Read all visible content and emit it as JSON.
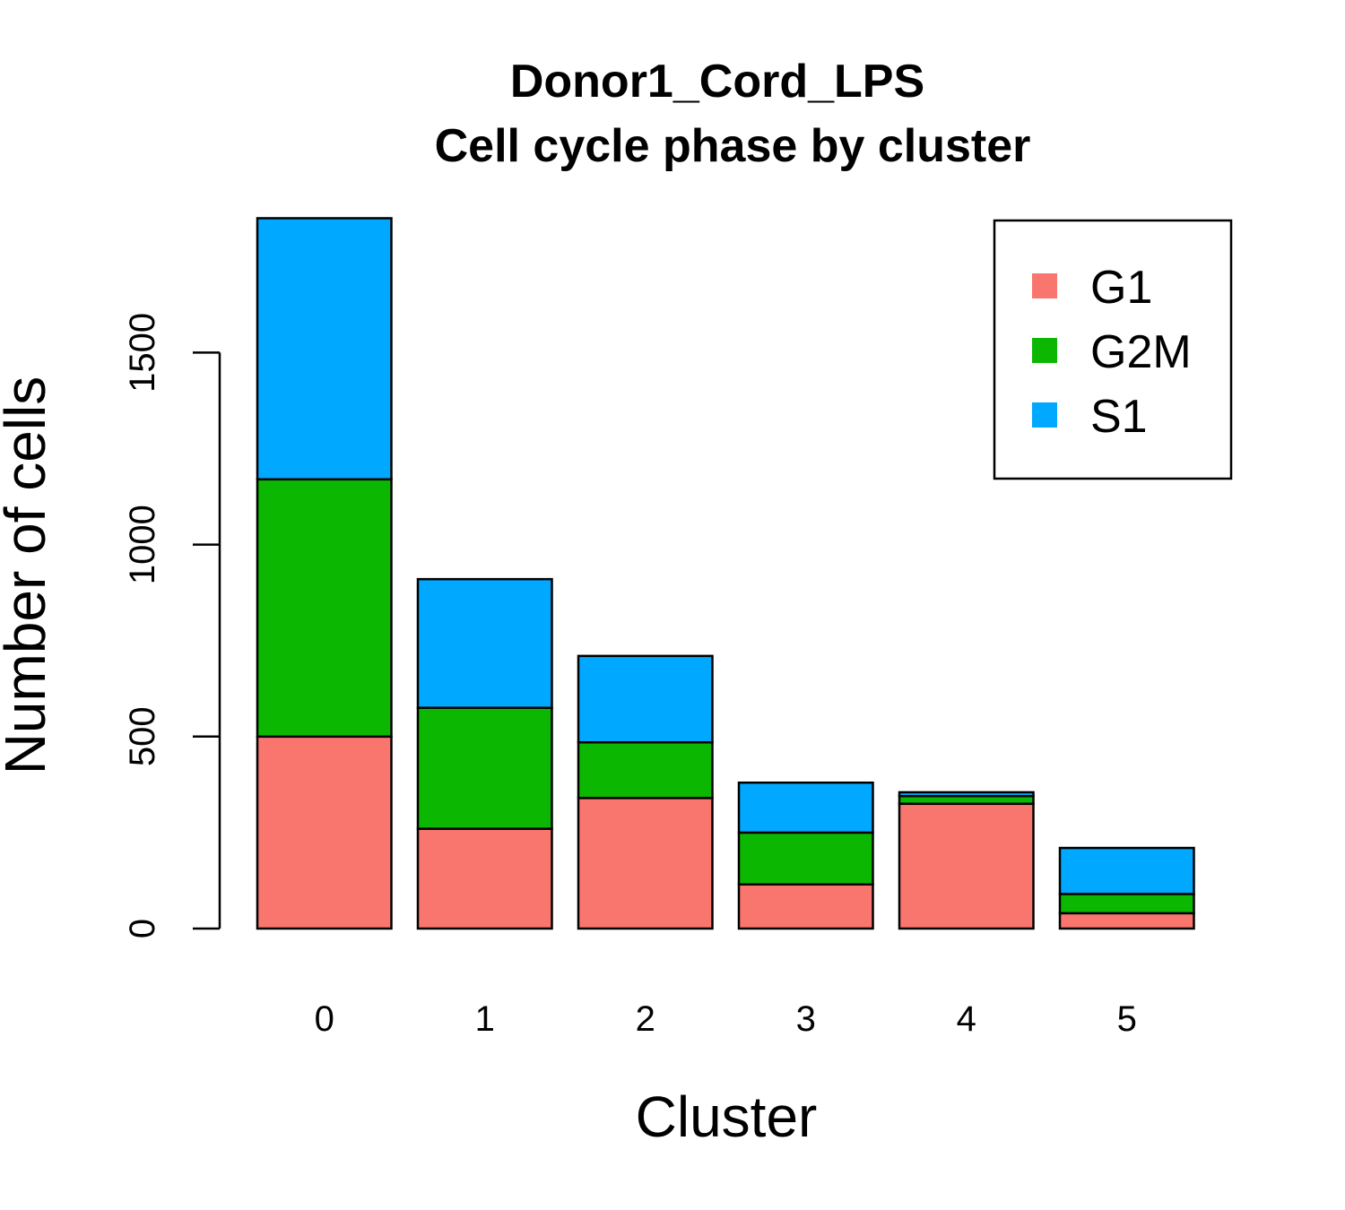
{
  "chart_data": {
    "type": "bar",
    "stacked": true,
    "title": "Donor1_Cord_LPS",
    "subtitle": "Cell cycle phase by cluster",
    "xlabel": "Cluster",
    "ylabel": "Number of cells",
    "categories": [
      "0",
      "1",
      "2",
      "3",
      "4",
      "5"
    ],
    "yticks": [
      "0",
      "500",
      "1000",
      "1500"
    ],
    "ylim": [
      0,
      1850
    ],
    "grid": false,
    "legend_position": "top-right",
    "series": [
      {
        "name": "G1",
        "color": "#F8766D",
        "values": [
          500,
          260,
          340,
          115,
          325,
          40
        ]
      },
      {
        "name": "G2M",
        "color": "#0CB702",
        "values": [
          670,
          315,
          145,
          135,
          20,
          50
        ]
      },
      {
        "name": "S1",
        "color": "#00A9FF",
        "values": [
          680,
          335,
          225,
          130,
          10,
          120
        ]
      }
    ]
  }
}
